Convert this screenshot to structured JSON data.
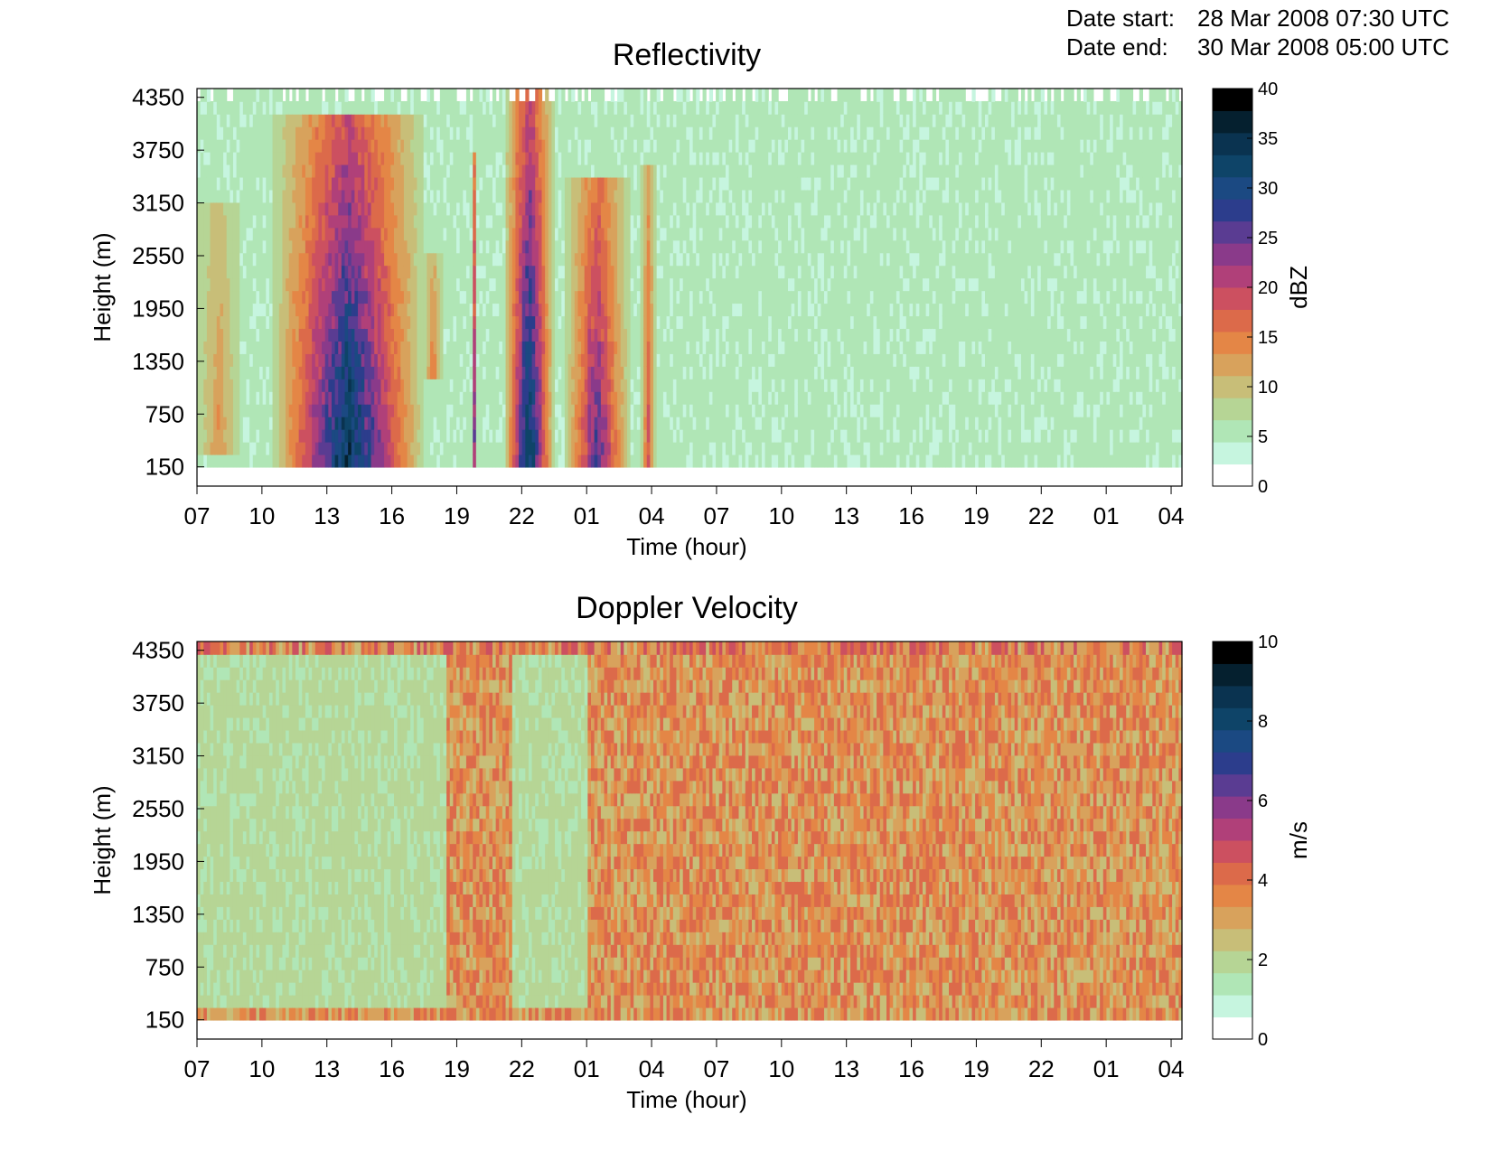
{
  "header": {
    "date_start_label": "Date start:",
    "date_start_value": "28 Mar 2008 07:30 UTC",
    "date_end_label": "Date end:",
    "date_end_value": "30 Mar 2008 05:00 UTC"
  },
  "chart_data": [
    {
      "type": "heatmap",
      "title": "Reflectivity",
      "xlabel": "Time (hour)",
      "ylabel": "Height (m)",
      "x_ticks": [
        "07",
        "10",
        "13",
        "16",
        "19",
        "22",
        "01",
        "04",
        "07",
        "10",
        "13",
        "16",
        "19",
        "22",
        "01",
        "04"
      ],
      "y_ticks": [
        "150",
        "750",
        "1350",
        "1950",
        "2550",
        "3150",
        "3750",
        "4350"
      ],
      "y_range": [
        150,
        4450
      ],
      "colorbar": {
        "label": "dBZ",
        "range": [
          0,
          40
        ],
        "ticks": [
          "0",
          "5",
          "10",
          "15",
          "20",
          "25",
          "30",
          "35",
          "40"
        ]
      },
      "features": [
        {
          "hour_range": [
            7.0,
            9.0
          ],
          "height_range": [
            300,
            3200
          ],
          "peak_dBZ": 14
        },
        {
          "hour_range": [
            10.5,
            17.5
          ],
          "height_range": [
            150,
            4100
          ],
          "peak_dBZ": 40
        },
        {
          "hour_range": [
            17.5,
            18.3
          ],
          "height_range": [
            1100,
            2600
          ],
          "peak_dBZ": 18
        },
        {
          "hour_range": [
            19.7,
            19.9
          ],
          "height_range": [
            150,
            3700
          ],
          "peak_dBZ": 30
        },
        {
          "hour_range": [
            21.8,
            22.1
          ],
          "height_range": [
            150,
            2900
          ],
          "peak_dBZ": 28
        },
        {
          "hour_range": [
            1.0,
            1.2
          ],
          "height_range": [
            150,
            3300
          ],
          "peak_dBZ": 32
        },
        {
          "hour_range": [
            3.5,
            4.2
          ],
          "height_range": [
            150,
            3600
          ],
          "peak_dBZ": 20
        },
        {
          "hour_range": [
            13.0,
            13.5
          ],
          "height_range": [
            150,
            2900
          ],
          "peak_dBZ": 24
        },
        {
          "hour_range": [
            14.5,
            14.9
          ],
          "height_range": [
            150,
            2200
          ],
          "peak_dBZ": 28
        },
        {
          "hour_range": [
            21.2,
            23.5
          ],
          "height_range": [
            150,
            4450
          ],
          "peak_dBZ": 40
        },
        {
          "hour_range": [
            0.0,
            3.0
          ],
          "height_range": [
            150,
            3500
          ],
          "peak_dBZ": 30
        }
      ]
    },
    {
      "type": "heatmap",
      "title": "Doppler Velocity",
      "xlabel": "Time (hour)",
      "ylabel": "Height (m)",
      "x_ticks": [
        "07",
        "10",
        "13",
        "16",
        "19",
        "22",
        "01",
        "04",
        "07",
        "10",
        "13",
        "16",
        "19",
        "22",
        "01",
        "04"
      ],
      "y_ticks": [
        "150",
        "750",
        "1350",
        "1950",
        "2550",
        "3150",
        "3750",
        "4350"
      ],
      "y_range": [
        150,
        4450
      ],
      "colorbar": {
        "label": "m/s",
        "range": [
          0,
          10
        ],
        "ticks": [
          "0",
          "2",
          "4",
          "6",
          "8",
          "10"
        ]
      },
      "features": [
        {
          "hour_range": [
            7.0,
            18.5
          ],
          "height_range": [
            300,
            4450
          ],
          "typical_m_s": 1.5
        },
        {
          "hour_range": [
            18.5,
            5.0
          ],
          "height_range": [
            150,
            4450
          ],
          "typical_m_s": 3.2
        },
        {
          "hour_range": [
            21.5,
            1.0
          ],
          "height_range": [
            300,
            4450
          ],
          "typical_m_s": 1.5
        }
      ]
    }
  ]
}
